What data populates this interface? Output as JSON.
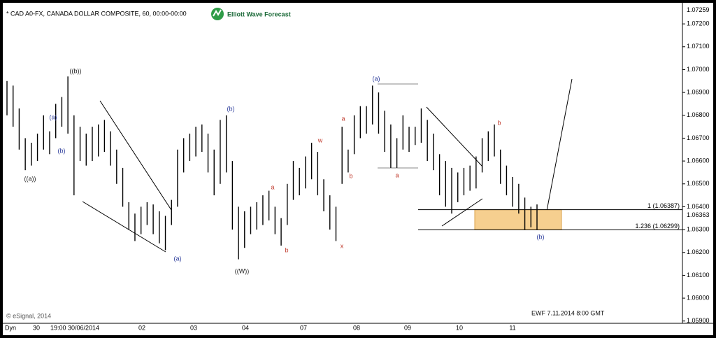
{
  "chart_data": {
    "type": "ohlc",
    "title": "* CAD A0-FX, CANADA DOLLAR COMPOSITE, 60, 00:00-00:00",
    "brand": "Elliott Wave Forecast",
    "footer": "EWF 7.11.2014 8:00 GMT",
    "copyright": "© eSignal, 2014",
    "corner_label": "Dyn",
    "x_labels": [
      "30",
      "19:00 30/06/2014",
      "02",
      "03",
      "04",
      "07",
      "08",
      "09",
      "10",
      "11"
    ],
    "color": "#000000",
    "high": [
      1.0695,
      1.0693,
      1.0683,
      1.067,
      1.0668,
      1.0672,
      1.068,
      1.0673,
      1.0685,
      1.0688,
      1.0697,
      1.068,
      1.0675,
      1.0672,
      1.0675,
      1.0676,
      1.0678,
      1.0673,
      1.0665,
      1.0657,
      1.0642,
      1.0637,
      1.064,
      1.0642,
      1.0641,
      1.0638,
      1.0636,
      1.0643,
      1.0665,
      1.067,
      1.0672,
      1.0675,
      1.0676,
      1.0672,
      1.0665,
      1.0678,
      1.068,
      1.066,
      1.064,
      1.0638,
      1.064,
      1.0642,
      1.0645,
      1.0647,
      1.064,
      1.0635,
      1.065,
      1.066,
      1.0657,
      1.0662,
      1.0668,
      1.0664,
      1.0652,
      1.0645,
      1.064,
      1.0675,
      1.0665,
      1.068,
      1.0684,
      1.0684,
      1.0693,
      1.069,
      1.0682,
      1.0676,
      1.067,
      1.068,
      1.0675,
      1.0675,
      1.0683,
      1.0678,
      1.0672,
      1.0663,
      1.066,
      1.0657,
      1.0655,
      1.0657,
      1.0658,
      1.0662,
      1.067,
      1.0673,
      1.0676,
      1.0665,
      1.0658,
      1.0653,
      1.065,
      1.0644,
      1.064,
      1.0641
    ],
    "low": [
      1.068,
      1.0675,
      1.0665,
      1.0656,
      1.0658,
      1.066,
      1.0665,
      1.0663,
      1.067,
      1.0675,
      1.0672,
      1.0645,
      1.066,
      1.0658,
      1.066,
      1.0662,
      1.0664,
      1.0658,
      1.065,
      1.064,
      1.063,
      1.0625,
      1.0628,
      1.0632,
      1.0628,
      1.0624,
      1.0621,
      1.0632,
      1.064,
      1.0655,
      1.066,
      1.0662,
      1.0664,
      1.0655,
      1.0645,
      1.065,
      1.0655,
      1.063,
      1.0617,
      1.0622,
      1.0628,
      1.063,
      1.0632,
      1.0634,
      1.0628,
      1.0623,
      1.0632,
      1.0643,
      1.0645,
      1.0648,
      1.0652,
      1.0645,
      1.0638,
      1.063,
      1.0625,
      1.065,
      1.0655,
      1.0663,
      1.067,
      1.0672,
      1.0676,
      1.0672,
      1.0664,
      1.0657,
      1.0657,
      1.0665,
      1.0664,
      1.0667,
      1.0668,
      1.066,
      1.0656,
      1.0645,
      1.064,
      1.0637,
      1.0642,
      1.0645,
      1.0647,
      1.0648,
      1.0655,
      1.066,
      1.0662,
      1.065,
      1.0645,
      1.064,
      1.0637,
      1.063,
      1.0631,
      1.063
    ],
    "ylim": [
      1.0589,
      1.0728
    ],
    "yticks": [
      {
        "value": 1.059,
        "label": "1.05900"
      },
      {
        "value": 1.06,
        "label": "1.06000"
      },
      {
        "value": 1.061,
        "label": "1.06100"
      },
      {
        "value": 1.062,
        "label": "1.06200"
      },
      {
        "value": 1.063,
        "label": "1.06300"
      },
      {
        "value": 1.064,
        "label": "1.06400"
      },
      {
        "value": 1.065,
        "label": "1.06500"
      },
      {
        "value": 1.066,
        "label": "1.06600"
      },
      {
        "value": 1.067,
        "label": "1.06700"
      },
      {
        "value": 1.068,
        "label": "1.06800"
      },
      {
        "value": 1.069,
        "label": "1.06900"
      },
      {
        "value": 1.07,
        "label": "1.07000"
      },
      {
        "value": 1.071,
        "label": "1.07100"
      },
      {
        "value": 1.072,
        "label": "1.07200"
      }
    ],
    "top_price": {
      "value": 1.07259,
      "label": "1.07259"
    },
    "last_price": {
      "value": 1.06363,
      "label": "1.06363"
    },
    "fib_levels": [
      {
        "value": 1.06387,
        "label": "1 (1.06387)"
      },
      {
        "value": 1.06299,
        "label": "1.236 (1.06299)"
      }
    ],
    "zone_color": "#f6cf8f",
    "annotations": [
      {
        "text": "((b))",
        "color": "#222222"
      },
      {
        "text": "(a)",
        "color": "#2a3a9a"
      },
      {
        "text": "(b)",
        "color": "#2a3a9a"
      },
      {
        "text": "((a))",
        "color": "#222222"
      },
      {
        "text": "(a)",
        "color": "#2a3a9a"
      },
      {
        "text": "(b)",
        "color": "#2a3a9a"
      },
      {
        "text": "((W))",
        "color": "#222222"
      },
      {
        "text": "a",
        "color": "#c0392b"
      },
      {
        "text": "b",
        "color": "#c0392b"
      },
      {
        "text": "w",
        "color": "#c0392b"
      },
      {
        "text": "a",
        "color": "#c0392b"
      },
      {
        "text": "b",
        "color": "#c0392b"
      },
      {
        "text": "x",
        "color": "#c0392b"
      },
      {
        "text": "(a)",
        "color": "#2a3a9a"
      },
      {
        "text": "a",
        "color": "#c0392b"
      },
      {
        "text": "b",
        "color": "#c0392b"
      },
      {
        "text": "(b)",
        "color": "#2a3a9a"
      }
    ]
  }
}
